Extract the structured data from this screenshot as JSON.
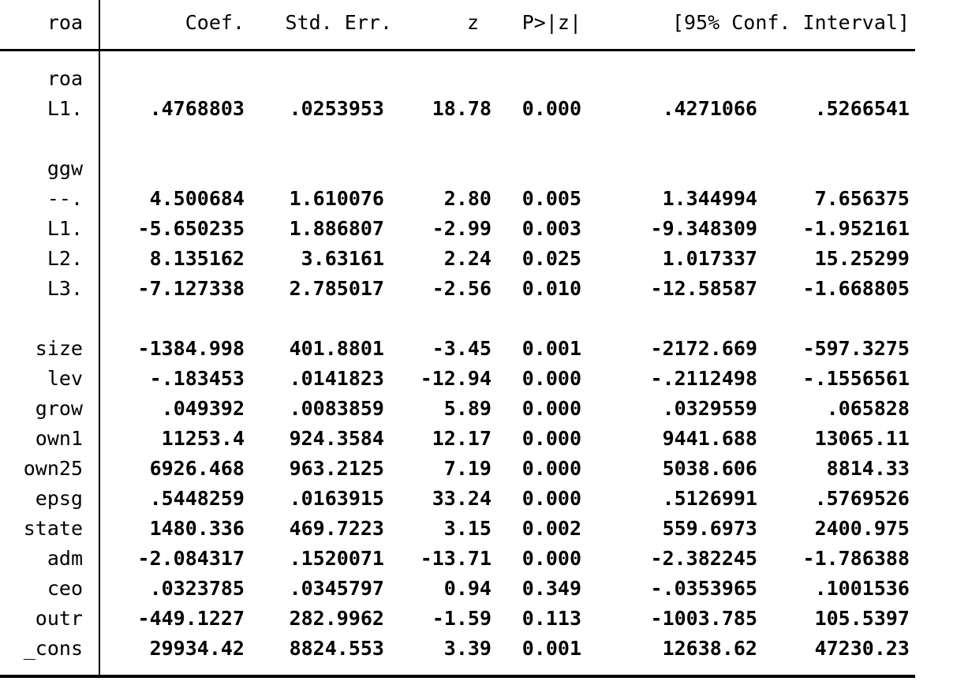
{
  "colors": {
    "background": "#ffffff",
    "text": "#000000",
    "rule": "#000000"
  },
  "table": {
    "depvar_header": "roa",
    "columns": {
      "coef": "Coef.",
      "stderr": "Std. Err.",
      "z": "z",
      "p": "P>|z|",
      "ci": "[95% Conf. Interval]"
    },
    "rows": [
      {
        "type": "group",
        "label": "roa"
      },
      {
        "type": "data",
        "label": "L1.",
        "coef": ".4768803",
        "stderr": ".0253953",
        "z": "18.78",
        "p": "0.000",
        "ci_low": ".4271066",
        "ci_high": ".5266541"
      },
      {
        "type": "blank"
      },
      {
        "type": "group",
        "label": "ggw"
      },
      {
        "type": "data",
        "label": "--.",
        "coef": "4.500684",
        "stderr": "1.610076",
        "z": "2.80",
        "p": "0.005",
        "ci_low": "1.344994",
        "ci_high": "7.656375"
      },
      {
        "type": "data",
        "label": "L1.",
        "coef": "-5.650235",
        "stderr": "1.886807",
        "z": "-2.99",
        "p": "0.003",
        "ci_low": "-9.348309",
        "ci_high": "-1.952161"
      },
      {
        "type": "data",
        "label": "L2.",
        "coef": "8.135162",
        "stderr": "3.63161",
        "z": "2.24",
        "p": "0.025",
        "ci_low": "1.017337",
        "ci_high": "15.25299"
      },
      {
        "type": "data",
        "label": "L3.",
        "coef": "-7.127338",
        "stderr": "2.785017",
        "z": "-2.56",
        "p": "0.010",
        "ci_low": "-12.58587",
        "ci_high": "-1.668805"
      },
      {
        "type": "blank"
      },
      {
        "type": "data",
        "label": "size",
        "coef": "-1384.998",
        "stderr": "401.8801",
        "z": "-3.45",
        "p": "0.001",
        "ci_low": "-2172.669",
        "ci_high": "-597.3275"
      },
      {
        "type": "data",
        "label": "lev",
        "coef": "-.183453",
        "stderr": ".0141823",
        "z": "-12.94",
        "p": "0.000",
        "ci_low": "-.2112498",
        "ci_high": "-.1556561"
      },
      {
        "type": "data",
        "label": "grow",
        "coef": ".049392",
        "stderr": ".0083859",
        "z": "5.89",
        "p": "0.000",
        "ci_low": ".0329559",
        "ci_high": ".065828"
      },
      {
        "type": "data",
        "label": "own1",
        "coef": "11253.4",
        "stderr": "924.3584",
        "z": "12.17",
        "p": "0.000",
        "ci_low": "9441.688",
        "ci_high": "13065.11"
      },
      {
        "type": "data",
        "label": "own25",
        "coef": "6926.468",
        "stderr": "963.2125",
        "z": "7.19",
        "p": "0.000",
        "ci_low": "5038.606",
        "ci_high": "8814.33"
      },
      {
        "type": "data",
        "label": "epsg",
        "coef": ".5448259",
        "stderr": ".0163915",
        "z": "33.24",
        "p": "0.000",
        "ci_low": ".5126991",
        "ci_high": ".5769526"
      },
      {
        "type": "data",
        "label": "state",
        "coef": "1480.336",
        "stderr": "469.7223",
        "z": "3.15",
        "p": "0.002",
        "ci_low": "559.6973",
        "ci_high": "2400.975"
      },
      {
        "type": "data",
        "label": "adm",
        "coef": "-2.084317",
        "stderr": ".1520071",
        "z": "-13.71",
        "p": "0.000",
        "ci_low": "-2.382245",
        "ci_high": "-1.786388"
      },
      {
        "type": "data",
        "label": "ceo",
        "coef": ".0323785",
        "stderr": ".0345797",
        "z": "0.94",
        "p": "0.349",
        "ci_low": "-.0353965",
        "ci_high": ".1001536"
      },
      {
        "type": "data",
        "label": "outr",
        "coef": "-449.1227",
        "stderr": "282.9962",
        "z": "-1.59",
        "p": "0.113",
        "ci_low": "-1003.785",
        "ci_high": "105.5397"
      },
      {
        "type": "data",
        "label": "_cons",
        "coef": "29934.42",
        "stderr": "8824.553",
        "z": "3.39",
        "p": "0.001",
        "ci_low": "12638.62",
        "ci_high": "47230.23"
      }
    ]
  }
}
